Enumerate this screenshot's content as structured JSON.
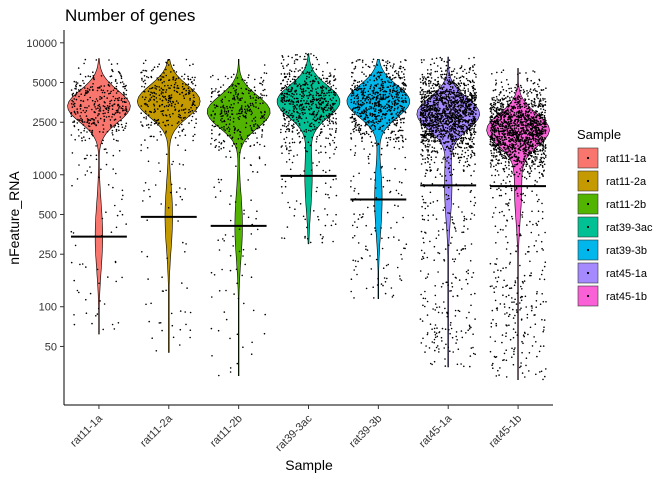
{
  "chart_data": {
    "type": "violin",
    "title": "Number of genes",
    "xlabel": "Sample",
    "ylabel": "nFeature_RNA",
    "yscale": "log10",
    "ylim": [
      18,
      12500
    ],
    "yticks": [
      50,
      100,
      250,
      500,
      1000,
      2500,
      5000,
      10000
    ],
    "ytick_labels": [
      "50",
      "100",
      "250",
      "500",
      "1000",
      "2500",
      "5000",
      "10000"
    ],
    "grid": false,
    "legend_title": "Sample",
    "legend_position": "right",
    "categories": [
      "rat11-1a",
      "rat11-2a",
      "rat11-2b",
      "rat39-3ac",
      "rat39-3b",
      "rat45-1a",
      "rat45-1b"
    ],
    "series": [
      {
        "name": "rat11-1a",
        "color": "#F8766D",
        "min": 62,
        "max": 7600,
        "mode": 3300,
        "threshold": 340,
        "n_points": 420
      },
      {
        "name": "rat11-2a",
        "color": "#C49A00",
        "min": 45,
        "max": 7500,
        "mode": 3600,
        "threshold": 480,
        "n_points": 380
      },
      {
        "name": "rat11-2b",
        "color": "#53B400",
        "min": 30,
        "max": 7500,
        "mode": 3000,
        "threshold": 410,
        "n_points": 400
      },
      {
        "name": "rat39-3ac",
        "color": "#00C094",
        "min": 300,
        "max": 8300,
        "mode": 3600,
        "threshold": 980,
        "n_points": 700
      },
      {
        "name": "rat39-3b",
        "color": "#00B6EB",
        "min": 115,
        "max": 7500,
        "mode": 3600,
        "threshold": 650,
        "n_points": 800
      },
      {
        "name": "rat45-1a",
        "color": "#A58AFF",
        "min": 35,
        "max": 7800,
        "mode": 2900,
        "threshold": 830,
        "n_points": 1800
      },
      {
        "name": "rat45-1b",
        "color": "#FB61D7",
        "min": 28,
        "max": 6400,
        "mode": 2200,
        "threshold": 820,
        "n_points": 1800
      }
    ]
  }
}
